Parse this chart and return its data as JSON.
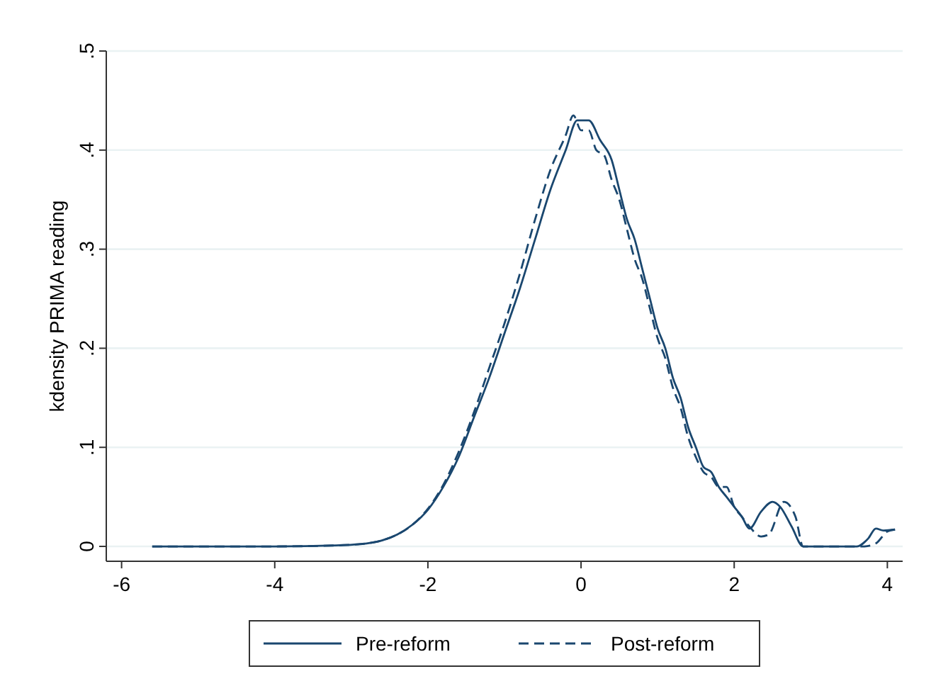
{
  "chart_data": {
    "type": "line",
    "ylabel": "kdensity PRIMA reading",
    "xlim": [
      -6.2,
      4.2
    ],
    "xticks": [
      -6,
      -4,
      -2,
      0,
      2,
      4
    ],
    "ylim": [
      -0.015,
      0.5
    ],
    "yticks": [
      0,
      {
        "value": 0.1,
        "label": ".1"
      },
      {
        "value": 0.2,
        "label": ".2"
      },
      {
        "value": 0.3,
        "label": ".3"
      },
      {
        "value": 0.4,
        "label": ".4"
      },
      {
        "value": 0.5,
        "label": ".5"
      }
    ],
    "grid": "y",
    "legend": "bottom",
    "series": [
      {
        "name": "Pre-reform",
        "color": "#1a476f",
        "line_style": "solid",
        "x": [
          -5.6,
          -4,
          -3.2,
          -2.8,
          -2.6,
          -2.4,
          -2.2,
          -2,
          -1.8,
          -1.6,
          -1.4,
          -1.2,
          -1,
          -0.8,
          -0.6,
          -0.4,
          -0.2,
          -0.05,
          0.1,
          0.25,
          0.4,
          0.5,
          0.6,
          0.7,
          0.8,
          0.9,
          1,
          1.1,
          1.2,
          1.3,
          1.4,
          1.5,
          1.6,
          1.7,
          1.8,
          1.9,
          2,
          2.1,
          2.2,
          2.35,
          2.5,
          2.6,
          2.75,
          2.9,
          3.6,
          3.75,
          3.85,
          3.95,
          4.1
        ],
        "values": [
          0,
          0,
          0.001,
          0.003,
          0.006,
          0.012,
          0.022,
          0.037,
          0.06,
          0.09,
          0.13,
          0.17,
          0.215,
          0.26,
          0.31,
          0.36,
          0.4,
          0.43,
          0.43,
          0.41,
          0.39,
          0.36,
          0.33,
          0.31,
          0.28,
          0.25,
          0.22,
          0.2,
          0.17,
          0.15,
          0.12,
          0.1,
          0.08,
          0.075,
          0.06,
          0.05,
          0.04,
          0.03,
          0.018,
          0.035,
          0.045,
          0.04,
          0.02,
          0,
          0,
          0.008,
          0.018,
          0.016,
          0.017
        ]
      },
      {
        "name": "Post-reform",
        "color": "#1a476f",
        "line_style": "dashed",
        "x": [
          -5.6,
          -4,
          -3.2,
          -2.8,
          -2.6,
          -2.4,
          -2.2,
          -2,
          -1.8,
          -1.6,
          -1.4,
          -1.2,
          -1,
          -0.8,
          -0.6,
          -0.4,
          -0.2,
          -0.1,
          0,
          0.1,
          0.2,
          0.3,
          0.4,
          0.5,
          0.6,
          0.7,
          0.8,
          0.9,
          1,
          1.1,
          1.2,
          1.3,
          1.4,
          1.5,
          1.6,
          1.7,
          1.8,
          1.9,
          2,
          2.1,
          2.2,
          2.35,
          2.45,
          2.65,
          2.8,
          2.9,
          3.7,
          3.85,
          4.0,
          4.1
        ],
        "values": [
          0,
          0,
          0.001,
          0.003,
          0.006,
          0.012,
          0.022,
          0.038,
          0.062,
          0.095,
          0.135,
          0.18,
          0.225,
          0.275,
          0.33,
          0.38,
          0.415,
          0.435,
          0.42,
          0.42,
          0.4,
          0.395,
          0.37,
          0.35,
          0.32,
          0.29,
          0.27,
          0.24,
          0.21,
          0.19,
          0.16,
          0.14,
          0.11,
          0.09,
          0.075,
          0.07,
          0.06,
          0.06,
          0.04,
          0.03,
          0.02,
          0.01,
          0.012,
          0.045,
          0.03,
          0,
          0,
          0.003,
          0.015,
          0.017
        ]
      }
    ]
  }
}
